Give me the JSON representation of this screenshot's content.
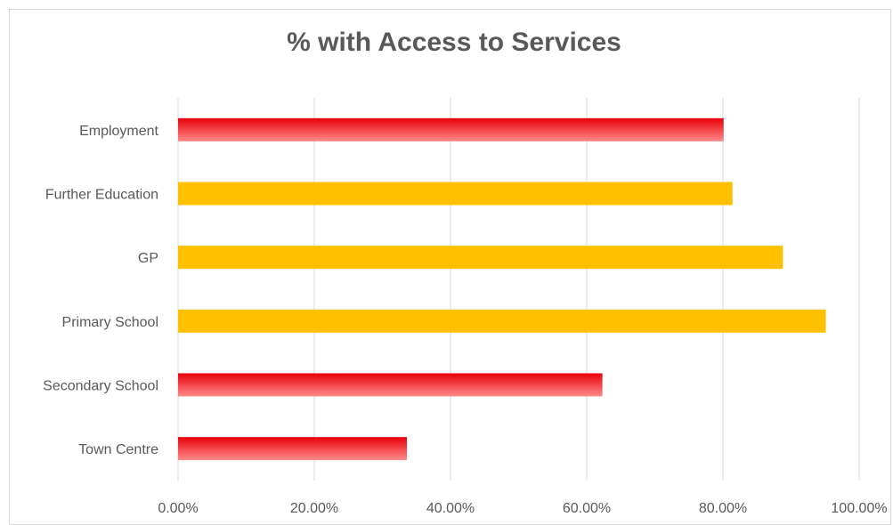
{
  "chart_data": {
    "type": "bar",
    "orientation": "horizontal",
    "title": "% with Access to Services",
    "xlabel": "",
    "ylabel": "",
    "xlim": [
      0,
      100
    ],
    "grid": true,
    "legend": "none",
    "categories": [
      "Employment",
      "Further Education",
      "GP",
      "Primary School",
      "Secondary School",
      "Town Centre"
    ],
    "values": [
      80.1,
      81.4,
      88.8,
      95.1,
      62.3,
      33.6
    ],
    "bar_colors": [
      "red-gradient",
      "#ffc000",
      "#ffc000",
      "#ffc000",
      "red-gradient",
      "red-gradient"
    ],
    "x_ticks": [
      "0.00%",
      "20.00%",
      "40.00%",
      "60.00%",
      "80.00%",
      "100.00%"
    ]
  },
  "colors": {
    "amber": "#ffc000",
    "red_top": "#e8000a",
    "red_bottom": "#ff8a8a",
    "gridline": "#d9d9d9",
    "text": "#595959"
  }
}
